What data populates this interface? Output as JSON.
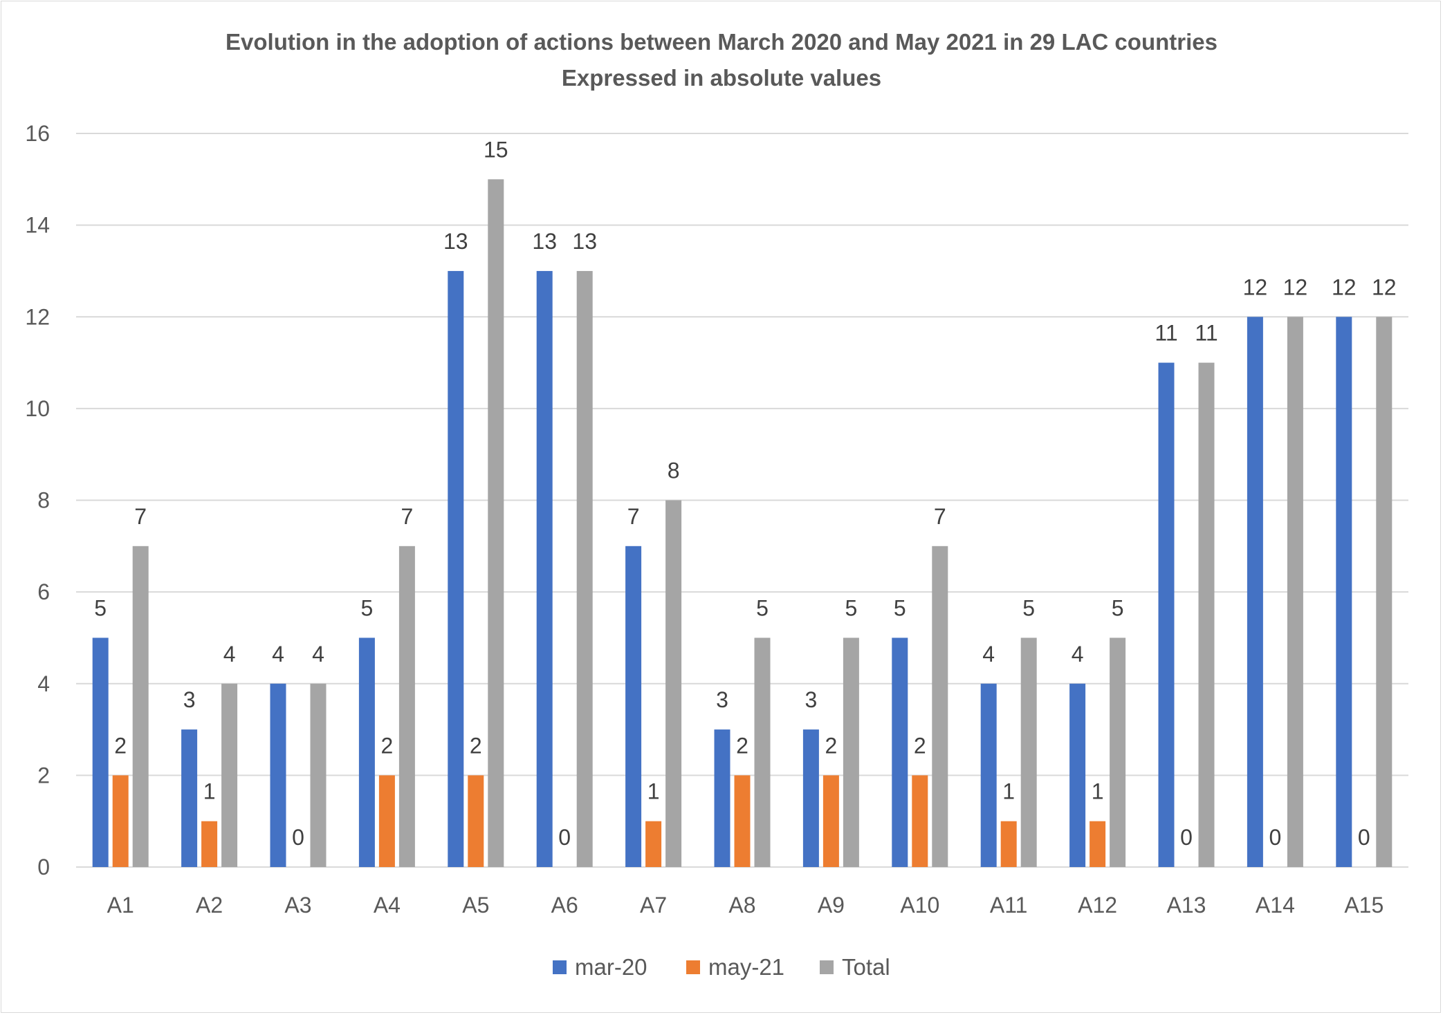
{
  "chart_data": {
    "type": "bar",
    "title": "Evolution in the adoption of actions between March 2020 and May 2021 in 29 LAC countries",
    "subtitle": "Expressed in absolute values",
    "xlabel": "",
    "ylabel": "",
    "ylim": [
      0,
      16
    ],
    "yticks": [
      0,
      2,
      4,
      6,
      8,
      10,
      12,
      14,
      16
    ],
    "grid": true,
    "legend_position": "bottom",
    "categories": [
      "A1",
      "A2",
      "A3",
      "A4",
      "A5",
      "A6",
      "A7",
      "A8",
      "A9",
      "A10",
      "A11",
      "A12",
      "A13",
      "A14",
      "A15"
    ],
    "series": [
      {
        "name": "mar-20",
        "color": "#4472c4",
        "values": [
          5,
          3,
          4,
          5,
          13,
          13,
          7,
          3,
          3,
          5,
          4,
          4,
          11,
          12,
          12
        ]
      },
      {
        "name": "may-21",
        "color": "#ed7d31",
        "values": [
          2,
          1,
          0,
          2,
          2,
          0,
          1,
          2,
          2,
          2,
          1,
          1,
          0,
          0,
          0
        ]
      },
      {
        "name": "Total",
        "color": "#a5a5a5",
        "values": [
          7,
          4,
          4,
          7,
          15,
          13,
          8,
          5,
          5,
          7,
          5,
          5,
          11,
          12,
          12
        ]
      }
    ]
  }
}
